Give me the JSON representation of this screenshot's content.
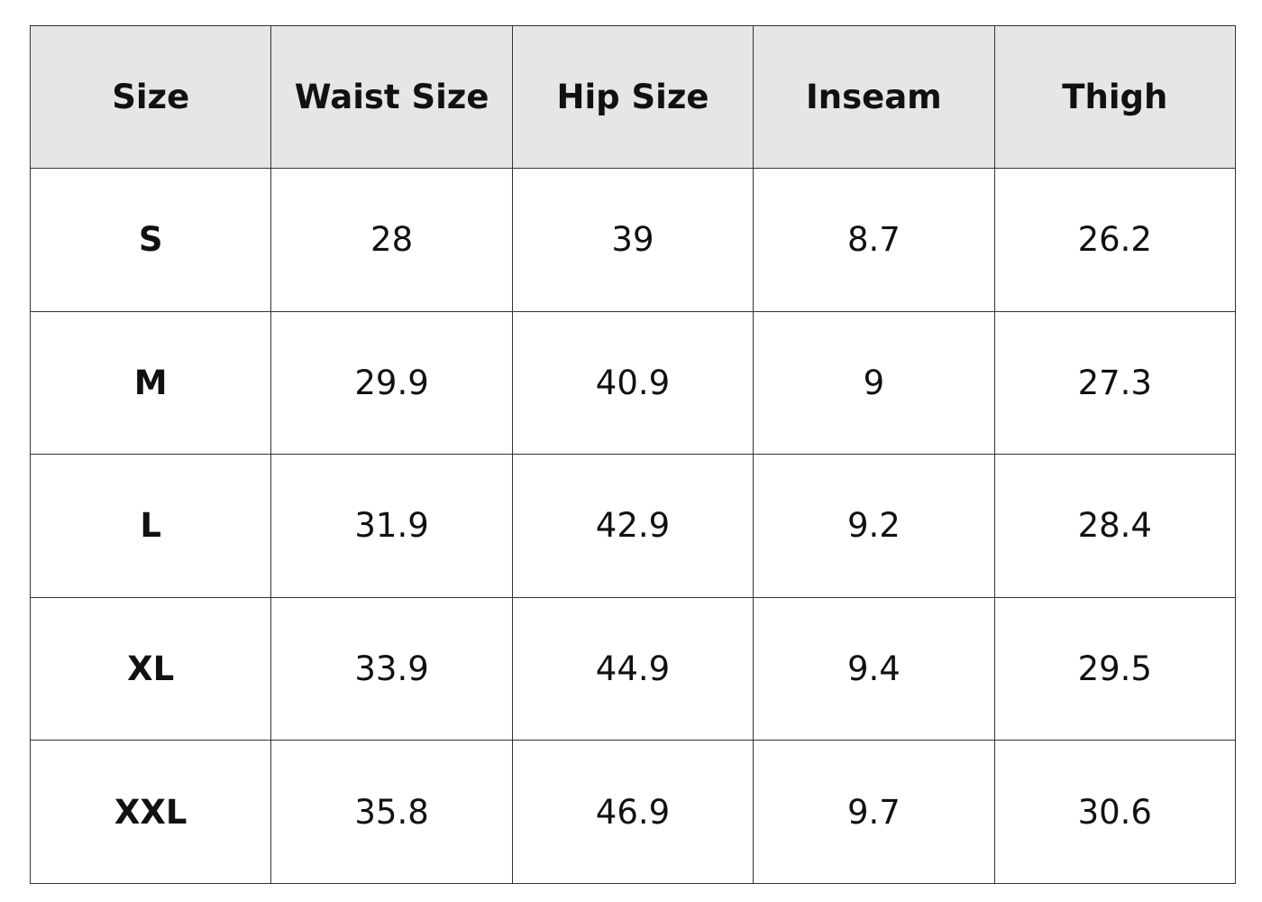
{
  "table": {
    "headers": [
      "Size",
      "Waist Size",
      "Hip Size",
      "Inseam",
      "Thigh"
    ],
    "rows": [
      [
        "S",
        28,
        39,
        8.7,
        26.2
      ],
      [
        "M",
        29.9,
        40.9,
        9,
        27.3
      ],
      [
        "L",
        31.9,
        42.9,
        9.2,
        28.4
      ],
      [
        "XL",
        33.9,
        44.9,
        9.4,
        29.5
      ],
      [
        "XXL",
        35.8,
        46.9,
        9.7,
        30.6
      ]
    ]
  }
}
